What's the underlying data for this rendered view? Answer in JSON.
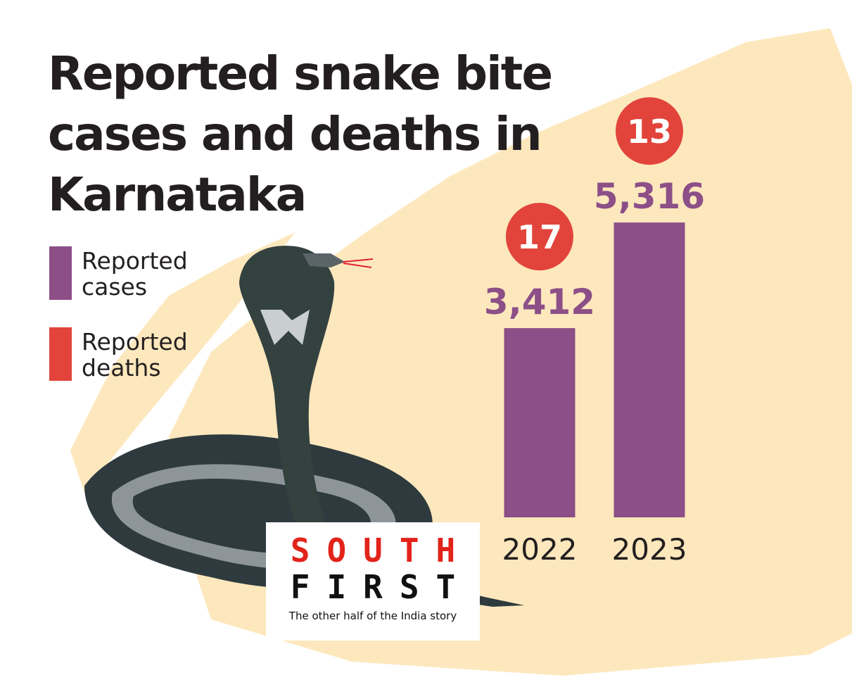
{
  "chart_data": {
    "type": "bar",
    "title": "Reported snake bite cases and deaths in Karnataka",
    "categories": [
      "2022",
      "2023"
    ],
    "series": [
      {
        "name": "Reported cases",
        "color": "#8c4f87",
        "values": [
          3412,
          5316
        ],
        "value_labels": [
          "3,412",
          "5,316"
        ]
      },
      {
        "name": "Reported deaths",
        "color": "#e2443b",
        "values": [
          17,
          13
        ]
      }
    ]
  },
  "logo": {
    "line1": "SOUTH",
    "line2": "FIRST",
    "tagline": "The other half of the India story"
  }
}
